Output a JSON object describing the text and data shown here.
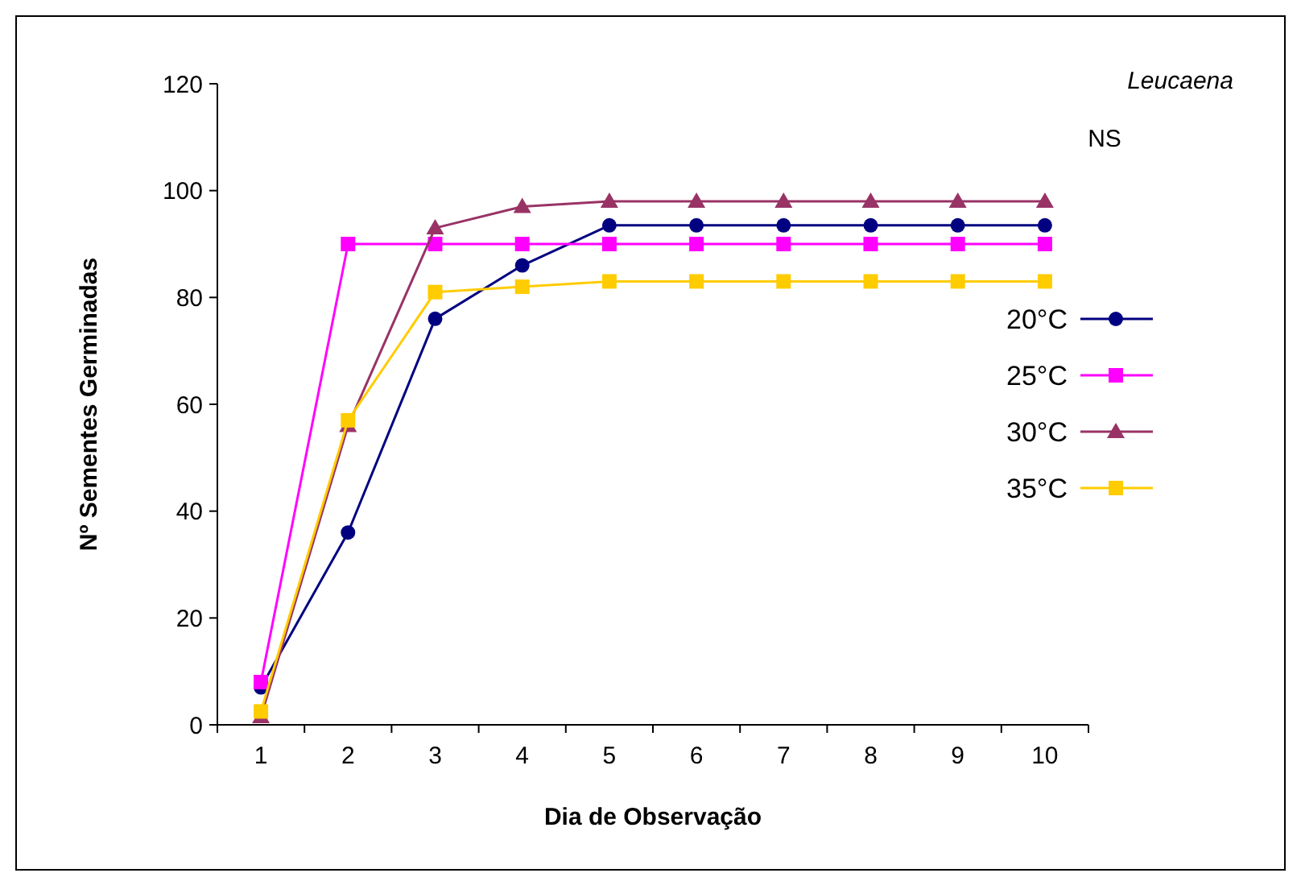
{
  "chart_data": {
    "type": "line",
    "xlabel": "Dia de Observação",
    "ylabel": "Nº Sementes Germinadas",
    "categories": [
      "1",
      "2",
      "3",
      "4",
      "5",
      "6",
      "7",
      "8",
      "9",
      "10"
    ],
    "series": [
      {
        "name": "20°C",
        "color": "#000080",
        "marker": "circle",
        "values": [
          7,
          36,
          76,
          86,
          93.5,
          93.5,
          93.5,
          93.5,
          93.5,
          93.5
        ]
      },
      {
        "name": "25°C",
        "color": "#ff00ff",
        "marker": "square",
        "values": [
          8,
          90,
          90,
          90,
          90,
          90,
          90,
          90,
          90,
          90
        ]
      },
      {
        "name": "30°C",
        "color": "#993366",
        "marker": "triangle",
        "values": [
          1.5,
          56,
          93,
          97,
          98,
          98,
          98,
          98,
          98,
          98
        ]
      },
      {
        "name": "35°C",
        "color": "#ffcc00",
        "marker": "square",
        "values": [
          2.5,
          57,
          81,
          82,
          83,
          83,
          83,
          83,
          83,
          83
        ]
      }
    ],
    "ylim": [
      0,
      120
    ],
    "yticks": [
      0,
      20,
      40,
      60,
      80,
      100,
      120
    ],
    "grid": false,
    "legend": "right",
    "annotations": [
      "Leucaena",
      "NS"
    ]
  }
}
